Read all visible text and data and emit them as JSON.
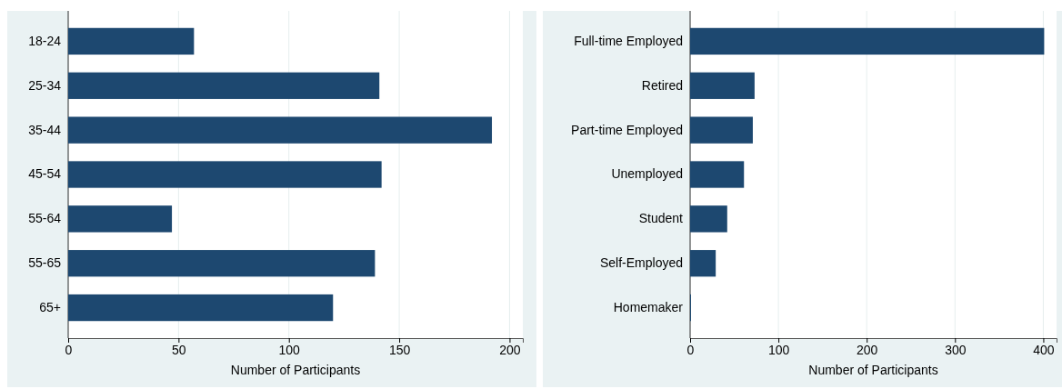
{
  "chart_data": [
    {
      "type": "bar",
      "orientation": "horizontal",
      "categories": [
        "18-24",
        "25-34",
        "35-44",
        "45-54",
        "55-64",
        "55-65",
        "65+"
      ],
      "values": [
        57,
        141,
        192,
        142,
        47,
        139,
        120
      ],
      "color": "#1d4870",
      "xlabel": "Number of Participants",
      "xlim": [
        0,
        206
      ],
      "xticks": [
        0,
        50,
        100,
        150,
        200
      ],
      "grid": "x"
    },
    {
      "type": "bar",
      "orientation": "horizontal",
      "categories": [
        "Full-time Employed",
        "Retired",
        "Part-time Employed",
        "Unemployed",
        "Student",
        "Self-Employed",
        "Homemaker"
      ],
      "values": [
        401,
        73,
        71,
        61,
        42,
        29,
        1
      ],
      "color": "#1d4870",
      "xlabel": "Number of Participants",
      "xlim": [
        0,
        415
      ],
      "xticks": [
        0,
        100,
        200,
        300,
        400
      ],
      "grid": "x"
    }
  ]
}
